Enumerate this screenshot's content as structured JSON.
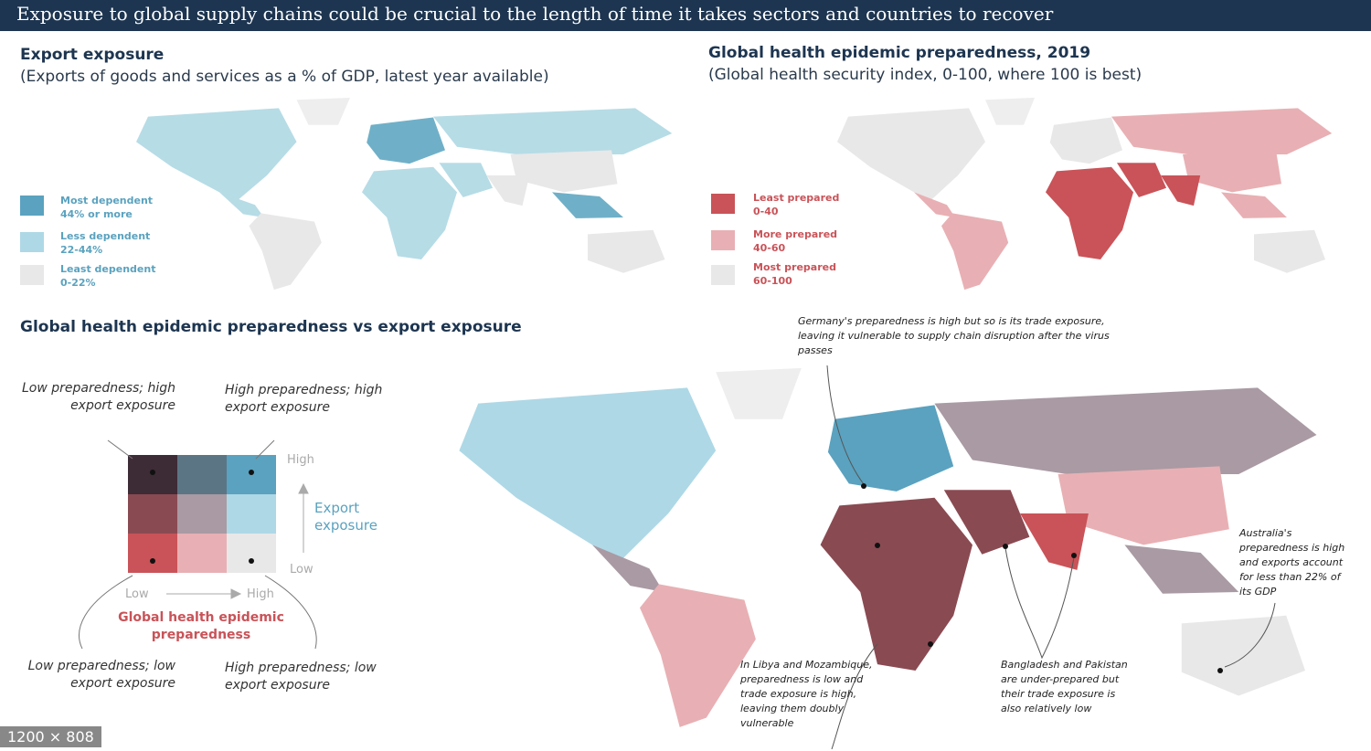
{
  "header": {
    "title": "Exposure to global supply chains could be crucial to the length of time it takes sectors and countries to recover"
  },
  "export_map": {
    "title": "Export exposure",
    "subtitle": "(Exports of goods and services as a % of GDP, latest year available)",
    "legend": [
      {
        "label": "Most dependent",
        "range": "44% or more"
      },
      {
        "label": "Less dependent",
        "range": "22-44%"
      },
      {
        "label": "Least dependent",
        "range": "0-22%"
      }
    ]
  },
  "preparedness_map": {
    "title": "Global health epidemic preparedness, 2019",
    "subtitle": "(Global health security index, 0-100, where 100 is  best)",
    "legend": [
      {
        "label": "Least prepared",
        "range": "0-40"
      },
      {
        "label": "More prepared",
        "range": "40-60"
      },
      {
        "label": "Most prepared",
        "range": "60-100"
      }
    ]
  },
  "combined": {
    "title": "Global health epidemic preparedness vs export exposure",
    "quadrants": {
      "top_left": "Low preparedness; high export exposure",
      "top_right": "High preparedness; high export exposure",
      "bottom_left": "Low preparedness; low export exposure",
      "bottom_right": "High preparedness; low export exposure"
    },
    "y_axis": {
      "high": "High",
      "title": "Export exposure",
      "low": "Low"
    },
    "x_axis": {
      "low": "Low",
      "high": "High",
      "title": "Global health epidemic preparedness"
    },
    "annotations": [
      "Germany's preparedness is high but so is its trade exposure, leaving it vulnerable to supply chain disruption after the virus passes",
      "In Libya and Mozambique, preparedness is low and trade exposure is high, leaving them doubly vulnerable",
      "Bangladesh and Pakistan are under-prepared but their trade exposure is also relatively low",
      "Australia's preparedness is high and exports account for less than 22% of its GDP"
    ]
  },
  "viewer": {
    "size_badge": "1200 × 808"
  }
}
